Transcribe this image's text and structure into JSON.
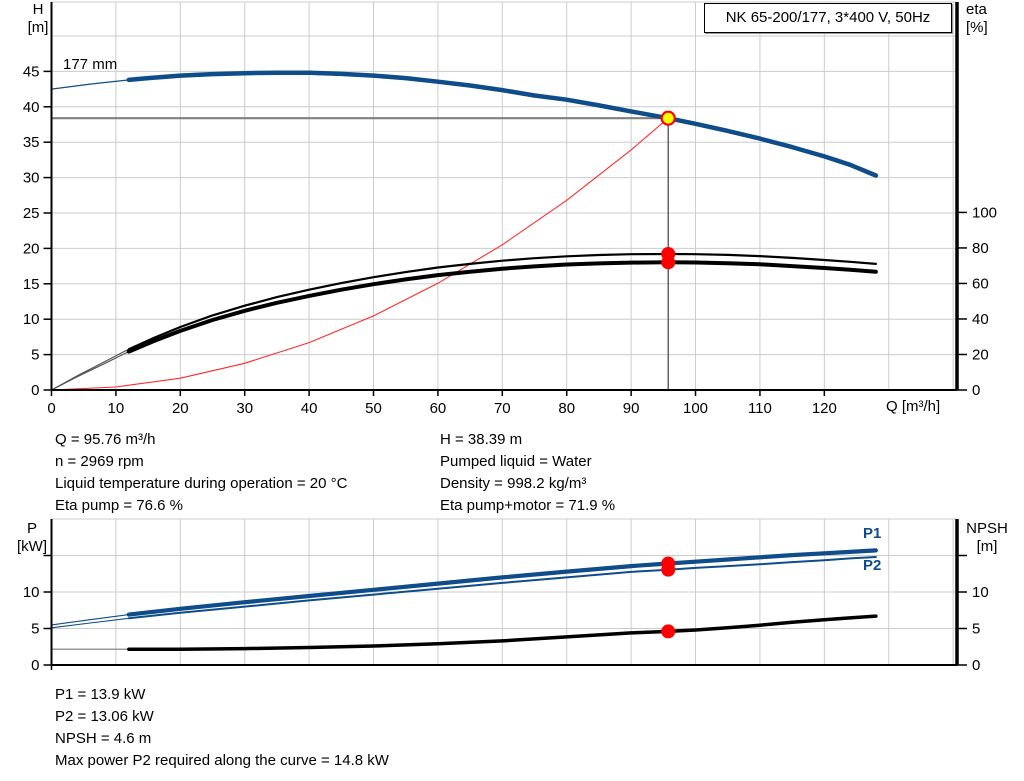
{
  "header": {
    "title": "NK 65-200/177, 3*400 V, 50Hz"
  },
  "top_chart": {
    "y_left_label_line1": "H",
    "y_left_label_line2": "[m]",
    "y_right_label_line1": "eta",
    "y_right_label_line2": "[%]",
    "x_axis_label": "Q [m³/h]",
    "impeller_label": "177 mm"
  },
  "bottom_chart": {
    "y_left_label_line1": "P",
    "y_left_label_line2": "[kW]",
    "y_right_label_line1": "NPSH",
    "y_right_label_line2": "[m]",
    "p1_label": "P1",
    "p2_label": "P2"
  },
  "operating_text": {
    "left": [
      "Q = 95.76 m³/h",
      "n = 2969 rpm",
      "Liquid temperature during operation = 20 °C",
      "Eta pump = 76.6 %"
    ],
    "right": [
      "H = 38.39 m",
      "Pumped liquid = Water",
      "Density = 998.2 kg/m³",
      "Eta pump+motor = 71.9 %"
    ]
  },
  "result_text": [
    "P1 = 13.9 kW",
    "P2 = 13.06 kW",
    "NPSH = 4.6 m",
    "Max power P2 required along the curve = 14.8 kW"
  ],
  "colors": {
    "curve_blue": "#0e4c8a",
    "curve_black": "#000000",
    "curve_red": "#ff2a2a",
    "marker_red": "#ff0000",
    "marker_yellow": "#ffff00",
    "grid": "#cccccc",
    "guide_h": "#7f7f7f",
    "guide_v": "#4d4d4d",
    "axis": "#000000",
    "thin_gray": "#555555",
    "npsh_thin": "#999999"
  },
  "chart_data": [
    {
      "type": "line",
      "name": "head-and-efficiency-chart",
      "x_axis": {
        "label": "Q [m³/h]",
        "min": 0,
        "max": 140.6,
        "ticks": [
          0,
          10,
          20,
          30,
          40,
          50,
          60,
          70,
          80,
          90,
          100,
          110,
          120
        ]
      },
      "y_left": {
        "label": "H [m]",
        "min": 0,
        "max": 54.8,
        "ticks": [
          0,
          5,
          10,
          15,
          20,
          25,
          30,
          35,
          40,
          45
        ],
        "tick_marks": [
          0,
          5,
          10,
          15,
          20,
          25,
          30,
          35,
          40,
          45
        ]
      },
      "y_right": {
        "label": "eta [%]",
        "min": 0,
        "max": 218.5,
        "ticks": [
          0,
          20,
          40,
          60,
          80,
          100
        ],
        "tick_marks": [
          0,
          20,
          40,
          60,
          80,
          100
        ]
      },
      "series": [
        {
          "name": "system-curve",
          "axis": "left",
          "color": "curve_red",
          "width": 1.1,
          "x": [
            0,
            10,
            20,
            30,
            40,
            50,
            60,
            70,
            80,
            90,
            95.76
          ],
          "y": [
            0,
            0.42,
            1.67,
            3.77,
            6.7,
            10.47,
            15.07,
            20.51,
            26.79,
            33.91,
            38.39
          ]
        },
        {
          "name": "eta-pump-curve",
          "axis": "right",
          "color": "curve_black",
          "width": 2.2,
          "thin_until": 12,
          "thin_color": "thin_gray",
          "thin_width": 1.2,
          "x": [
            0,
            4,
            8,
            12,
            16,
            20,
            25,
            30,
            35,
            40,
            45,
            50,
            55,
            60,
            65,
            70,
            75,
            80,
            85,
            90,
            95.76,
            100,
            105,
            110,
            115,
            120,
            124,
            128
          ],
          "y": [
            0,
            8,
            15.5,
            23,
            29.5,
            35.5,
            42,
            47.5,
            52.3,
            56.5,
            60.2,
            63.5,
            66.4,
            69,
            71,
            72.8,
            74.2,
            75.3,
            76,
            76.45,
            76.6,
            76.5,
            76.1,
            75.4,
            74.4,
            73.2,
            72.2,
            71
          ]
        },
        {
          "name": "eta-pump-motor-curve",
          "axis": "right",
          "color": "curve_black",
          "width": 4,
          "thin_until": 12,
          "thin_color": "thin_gray",
          "thin_width": 1.2,
          "x": [
            0,
            4,
            8,
            12,
            16,
            20,
            25,
            30,
            35,
            40,
            45,
            50,
            55,
            60,
            65,
            70,
            75,
            80,
            85,
            90,
            95.76,
            100,
            105,
            110,
            115,
            120,
            124,
            128
          ],
          "y": [
            0,
            7.5,
            14.5,
            21.6,
            27.7,
            33.3,
            39.4,
            44.6,
            49.1,
            53,
            56.5,
            59.6,
            62.3,
            64.7,
            66.6,
            68.3,
            69.6,
            70.7,
            71.3,
            71.75,
            71.9,
            71.8,
            71.4,
            70.8,
            69.8,
            68.7,
            67.7,
            66.6
          ]
        },
        {
          "name": "head-curve-177mm",
          "axis": "left",
          "color": "curve_blue",
          "width": 4.5,
          "thin_until": 12,
          "thin_color": "curve_blue",
          "thin_width": 1.2,
          "x": [
            0,
            3,
            6,
            9,
            12,
            15,
            20,
            25,
            30,
            35,
            40,
            45,
            50,
            55,
            60,
            65,
            70,
            75,
            80,
            85,
            90,
            95.76,
            100,
            105,
            110,
            115,
            120,
            124,
            128
          ],
          "y": [
            42.5,
            42.85,
            43.2,
            43.5,
            43.8,
            44.05,
            44.4,
            44.62,
            44.75,
            44.82,
            44.8,
            44.65,
            44.4,
            44.05,
            43.55,
            43,
            42.35,
            41.6,
            41,
            40.2,
            39.35,
            38.39,
            37.6,
            36.6,
            35.5,
            34.3,
            33,
            31.8,
            30.3
          ]
        }
      ],
      "guides": {
        "q_value": 95.76,
        "h_value": 38.39
      },
      "markers": [
        {
          "name": "eta-pump-point",
          "q": 95.76,
          "axis": "right",
          "v": 76.6,
          "style": "red"
        },
        {
          "name": "eta-pump-motor-point",
          "q": 95.76,
          "axis": "right",
          "v": 71.9,
          "style": "red"
        },
        {
          "name": "duty-point",
          "q": 95.76,
          "axis": "left",
          "v": 38.39,
          "style": "yellow"
        }
      ]
    },
    {
      "type": "line",
      "name": "power-and-npsh-chart",
      "x_axis": {
        "label": "",
        "min": 0,
        "max": 140.6,
        "ticks": []
      },
      "y_left": {
        "label": "P [kW]",
        "min": 0,
        "max": 20,
        "ticks": [
          0,
          5,
          10
        ],
        "tick_marks": [
          0,
          5,
          10,
          15
        ]
      },
      "y_right": {
        "label": "NPSH [m]",
        "min": 0,
        "max": 20,
        "ticks": [
          0,
          5,
          10
        ],
        "tick_marks": [
          0,
          5,
          10,
          15
        ]
      },
      "series": [
        {
          "name": "npsh-curve",
          "axis": "right",
          "color": "curve_black",
          "width": 3.5,
          "thin_until": 12,
          "thin_color": "npsh_thin",
          "thin_width": 1.5,
          "x": [
            0,
            12,
            20,
            30,
            40,
            50,
            60,
            70,
            80,
            90,
            95.76,
            100,
            105,
            110,
            115,
            120,
            124,
            128
          ],
          "y": [
            2.15,
            2.15,
            2.17,
            2.25,
            2.4,
            2.6,
            2.9,
            3.3,
            3.85,
            4.4,
            4.6,
            4.8,
            5.1,
            5.45,
            5.85,
            6.2,
            6.45,
            6.7
          ]
        },
        {
          "name": "p2-curve",
          "axis": "left",
          "color": "curve_blue",
          "width": 2,
          "thin_until": 12,
          "thin_color": "curve_blue",
          "thin_width": 1.1,
          "x": [
            0,
            6,
            12,
            20,
            30,
            40,
            50,
            60,
            70,
            80,
            90,
            95.76,
            100,
            105,
            110,
            115,
            120,
            124,
            128
          ],
          "y": [
            5.1,
            5.75,
            6.4,
            7.15,
            8,
            8.85,
            9.65,
            10.45,
            11.25,
            12,
            12.75,
            13.06,
            13.3,
            13.55,
            13.8,
            14.1,
            14.35,
            14.6,
            14.8
          ]
        },
        {
          "name": "p1-curve",
          "axis": "left",
          "color": "curve_blue",
          "width": 4.2,
          "thin_until": 12,
          "thin_color": "curve_blue",
          "thin_width": 1.1,
          "x": [
            0,
            6,
            12,
            20,
            30,
            40,
            50,
            60,
            70,
            80,
            90,
            95.76,
            100,
            105,
            110,
            115,
            120,
            124,
            128
          ],
          "y": [
            5.5,
            6.2,
            6.9,
            7.7,
            8.6,
            9.45,
            10.3,
            11.15,
            12,
            12.8,
            13.55,
            13.9,
            14.15,
            14.45,
            14.75,
            15.05,
            15.3,
            15.5,
            15.7
          ]
        }
      ],
      "markers": [
        {
          "name": "p1-point",
          "q": 95.76,
          "axis": "left",
          "v": 13.9,
          "style": "red"
        },
        {
          "name": "p2-point",
          "q": 95.76,
          "axis": "left",
          "v": 13.06,
          "style": "red"
        },
        {
          "name": "npsh-point",
          "q": 95.76,
          "axis": "right",
          "v": 4.6,
          "style": "red"
        }
      ]
    }
  ]
}
